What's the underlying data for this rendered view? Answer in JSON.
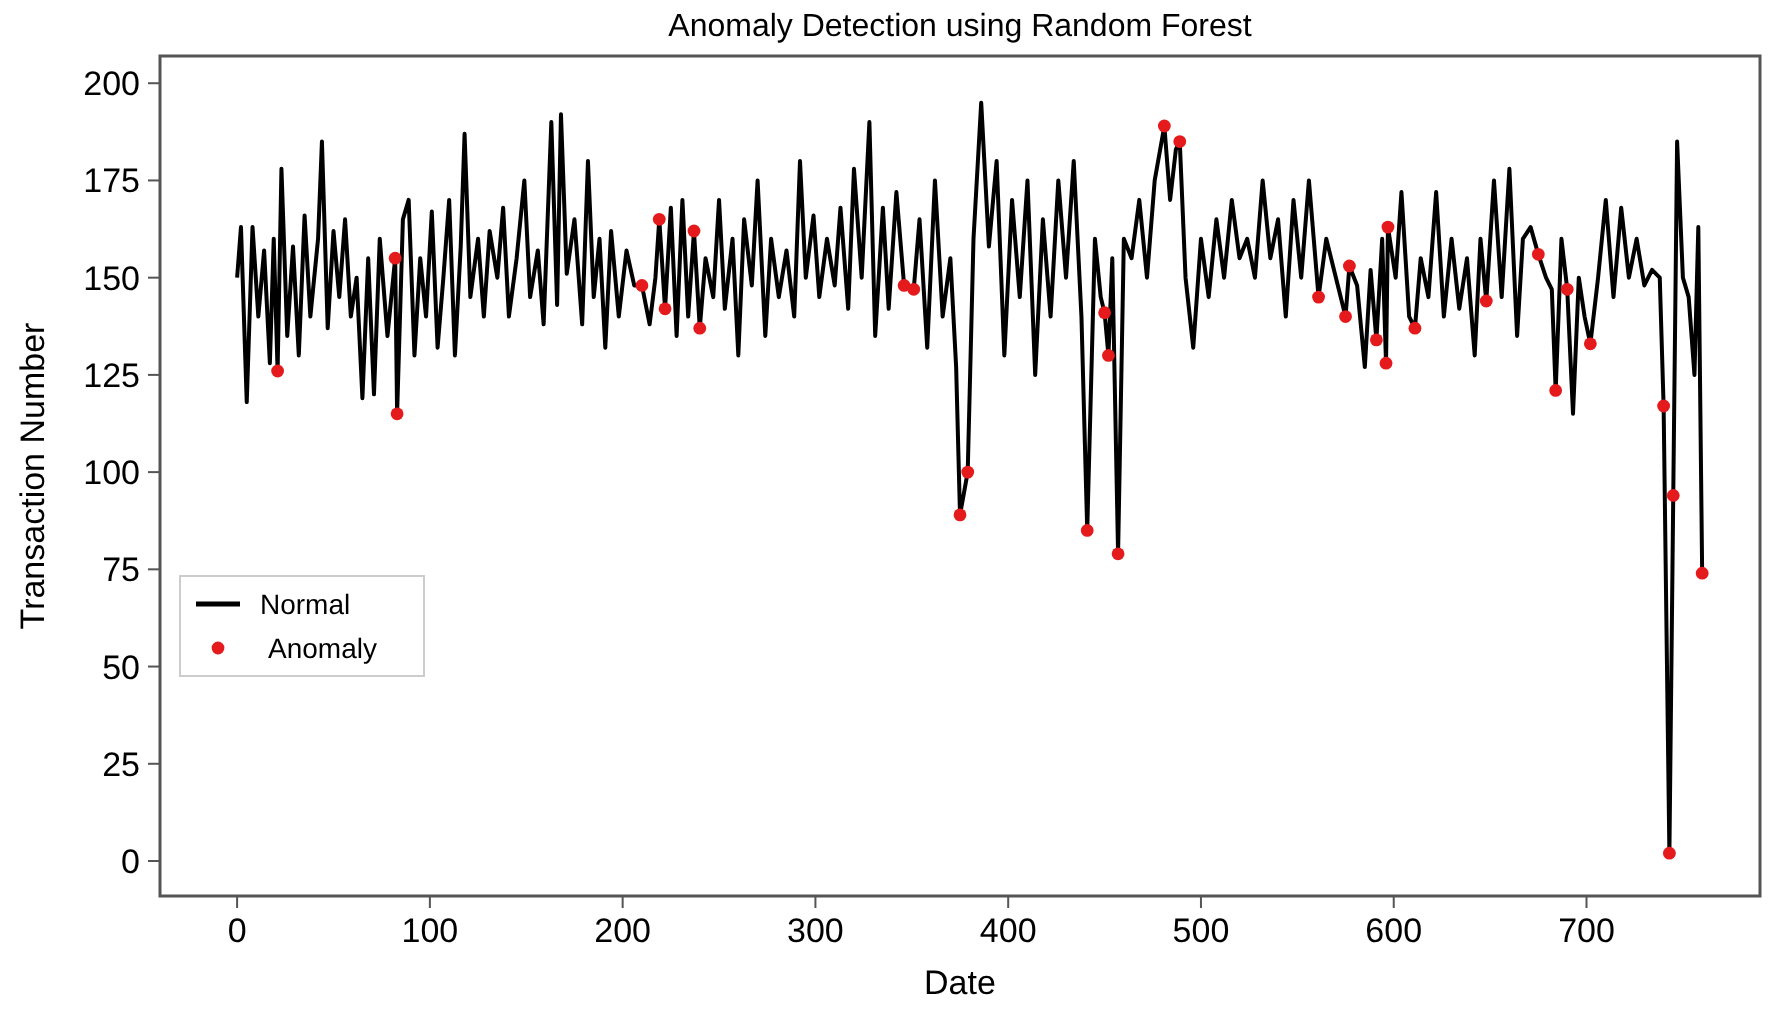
{
  "chart_data": {
    "type": "line",
    "title": "Anomaly Detection using Random Forest",
    "xlabel": "Date",
    "ylabel": "Transaction Number",
    "xlim": [
      -40,
      790
    ],
    "ylim": [
      -9,
      207
    ],
    "xticks": [
      0,
      100,
      200,
      300,
      400,
      500,
      600,
      700
    ],
    "yticks": [
      0,
      25,
      50,
      75,
      100,
      125,
      150,
      175,
      200
    ],
    "grid": false,
    "legend": "left",
    "series": [
      {
        "name": "Normal",
        "type": "line",
        "color": "#000000",
        "marker": "none",
        "line_style": "solid",
        "x": [
          0,
          2,
          5,
          8,
          11,
          14,
          17,
          19,
          21,
          23,
          26,
          29,
          32,
          35,
          38,
          42,
          44,
          47,
          50,
          53,
          56,
          59,
          62,
          65,
          68,
          71,
          74,
          78,
          82,
          83,
          86,
          89,
          92,
          95,
          98,
          101,
          104,
          107,
          110,
          113,
          116,
          118,
          121,
          125,
          128,
          131,
          135,
          138,
          141,
          145,
          149,
          152,
          156,
          159,
          163,
          166,
          168,
          171,
          175,
          179,
          182,
          185,
          188,
          191,
          194,
          198,
          202,
          206,
          210,
          214,
          217,
          219,
          222,
          225,
          228,
          231,
          234,
          237,
          240,
          243,
          247,
          250,
          253,
          257,
          260,
          263,
          267,
          270,
          274,
          277,
          281,
          285,
          289,
          292,
          295,
          299,
          302,
          306,
          310,
          313,
          317,
          320,
          324,
          328,
          331,
          335,
          338,
          342,
          346,
          351,
          354,
          358,
          362,
          366,
          370,
          373,
          375,
          379,
          382,
          386,
          390,
          394,
          398,
          402,
          406,
          410,
          414,
          418,
          422,
          426,
          430,
          434,
          438,
          441,
          445,
          448,
          450,
          452,
          454,
          457,
          460,
          464,
          468,
          472,
          476,
          481,
          484,
          487,
          489,
          492,
          496,
          500,
          504,
          508,
          512,
          516,
          520,
          524,
          528,
          532,
          536,
          540,
          544,
          548,
          552,
          556,
          561,
          565,
          570,
          575,
          577,
          581,
          585,
          588,
          591,
          594,
          596,
          597,
          601,
          604,
          608,
          611,
          614,
          618,
          622,
          626,
          630,
          634,
          638,
          642,
          645,
          648,
          652,
          656,
          660,
          664,
          667,
          671,
          675,
          679,
          682,
          684,
          687,
          690,
          693,
          696,
          699,
          702,
          706,
          710,
          714,
          718,
          722,
          726,
          730,
          734,
          738,
          740,
          743,
          745,
          747,
          750,
          753,
          756,
          758,
          760
        ],
        "values": [
          150,
          163,
          118,
          163,
          140,
          157,
          128,
          160,
          126,
          178,
          135,
          158,
          130,
          166,
          140,
          160,
          185,
          137,
          162,
          145,
          165,
          140,
          150,
          119,
          155,
          120,
          160,
          135,
          155,
          115,
          165,
          170,
          130,
          155,
          140,
          167,
          132,
          150,
          170,
          130,
          158,
          187,
          145,
          160,
          140,
          162,
          150,
          168,
          140,
          155,
          175,
          145,
          157,
          138,
          190,
          143,
          192,
          151,
          165,
          138,
          180,
          145,
          160,
          132,
          162,
          140,
          157,
          148,
          148,
          138,
          150,
          165,
          142,
          168,
          135,
          170,
          140,
          162,
          137,
          155,
          145,
          170,
          142,
          160,
          130,
          165,
          148,
          175,
          135,
          160,
          145,
          157,
          140,
          180,
          150,
          166,
          145,
          160,
          148,
          168,
          142,
          178,
          150,
          190,
          135,
          168,
          142,
          172,
          148,
          147,
          165,
          132,
          175,
          140,
          155,
          127,
          89,
          100,
          160,
          195,
          158,
          180,
          130,
          170,
          145,
          175,
          125,
          165,
          140,
          175,
          150,
          180,
          140,
          85,
          160,
          145,
          141,
          130,
          155,
          79,
          160,
          155,
          170,
          150,
          175,
          189,
          170,
          183,
          185,
          150,
          132,
          160,
          145,
          165,
          150,
          170,
          155,
          160,
          150,
          175,
          155,
          165,
          140,
          170,
          150,
          175,
          145,
          160,
          150,
          140,
          153,
          148,
          127,
          152,
          134,
          160,
          128,
          163,
          150,
          172,
          140,
          137,
          155,
          145,
          172,
          140,
          160,
          142,
          155,
          130,
          160,
          144,
          175,
          145,
          178,
          135,
          160,
          163,
          156,
          150,
          147,
          121,
          160,
          147,
          115,
          150,
          140,
          133,
          150,
          170,
          145,
          168,
          150,
          160,
          148,
          152,
          150,
          117,
          2,
          94,
          185,
          150,
          145,
          125,
          163,
          74
        ]
      },
      {
        "name": "Anomaly",
        "type": "scatter",
        "color": "#e41a1c",
        "marker": "circle",
        "x": [
          21,
          82,
          83,
          210,
          219,
          222,
          237,
          240,
          346,
          351,
          375,
          379,
          441,
          450,
          452,
          457,
          481,
          489,
          561,
          575,
          577,
          591,
          596,
          597,
          611,
          648,
          675,
          684,
          690,
          702,
          740,
          743,
          745,
          760
        ],
        "values": [
          126,
          155,
          115,
          148,
          165,
          142,
          162,
          137,
          148,
          147,
          89,
          100,
          85,
          141,
          130,
          79,
          189,
          185,
          145,
          140,
          153,
          134,
          128,
          163,
          137,
          144,
          156,
          121,
          147,
          133,
          117,
          2,
          94,
          74
        ]
      }
    ]
  }
}
